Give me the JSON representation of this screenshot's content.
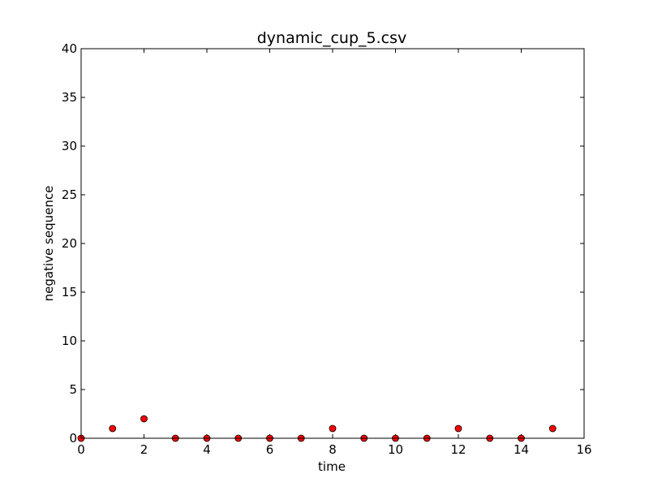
{
  "chart_data": {
    "type": "scatter",
    "title": "dynamic_cup_5.csv",
    "xlabel": "time",
    "ylabel": "negative sequence",
    "xlim": [
      0,
      16
    ],
    "ylim": [
      0,
      40
    ],
    "xticks": [
      0,
      2,
      4,
      6,
      8,
      10,
      12,
      14,
      16
    ],
    "yticks": [
      0,
      5,
      10,
      15,
      20,
      25,
      30,
      35,
      40
    ],
    "grid": false,
    "marker_color": "#ff0000",
    "marker_edge_color": "#000000",
    "series": [
      {
        "x": [
          0,
          1,
          2,
          3,
          4,
          5,
          6,
          7,
          8,
          9,
          10,
          11,
          12,
          13,
          14,
          15
        ],
        "y": [
          0,
          1,
          2,
          0,
          0,
          0,
          0,
          0,
          1,
          0,
          0,
          0,
          1,
          0,
          0,
          1
        ]
      }
    ]
  }
}
